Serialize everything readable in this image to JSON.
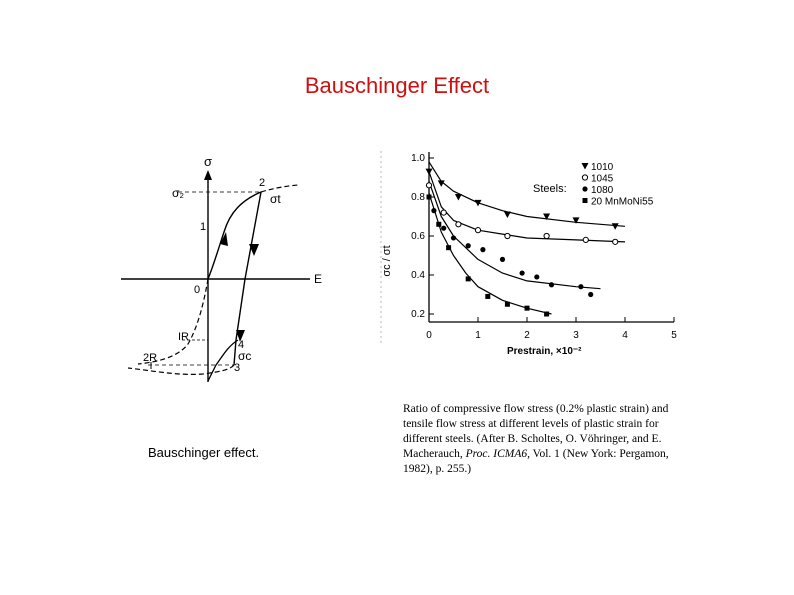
{
  "slide": {
    "title": "Bauschinger Effect",
    "caption_left": "Bauschinger effect.",
    "caption_right": {
      "part1": "Ratio of compressive flow stress (0.2% plastic strain) and tensile flow stress at different levels of plastic strain for different steels. (After B. Scholtes, O. Vöhringer, and E. Macherauch, ",
      "italic": "Proc. ICMA6,",
      "part2": " Vol. 1 (New York: Pergamon, 1982), p. 255.)"
    }
  },
  "hysteresis": {
    "y_label": "σ",
    "x_label": "E",
    "origin_label": "0",
    "labels": {
      "sigma2": "σ₂",
      "pt1": "1",
      "pt2": "2",
      "sigma_t": "σt",
      "ir": "IR",
      "pt2r": "2R",
      "pt3": "3",
      "pt4": "4",
      "sigma_c": "σc"
    }
  },
  "chart_data": {
    "type": "scatter",
    "title": "",
    "xlabel": "Prestrain, ×10⁻²",
    "ylabel": "σc / σt",
    "xlim": [
      0,
      5
    ],
    "ylim": [
      0.2,
      1.0
    ],
    "x_ticks": [
      "0",
      "1",
      "2",
      "3",
      "4",
      "5"
    ],
    "y_ticks": [
      "0.2",
      "0.4",
      "0.6",
      "0.8",
      "1.0"
    ],
    "legend_title": "Steels:",
    "legend_position": "top-right",
    "series": [
      {
        "name": "1010",
        "marker": "triangle-down",
        "points": [
          [
            0,
            0.93
          ],
          [
            0.25,
            0.87
          ],
          [
            0.6,
            0.8
          ],
          [
            1.0,
            0.77
          ],
          [
            1.6,
            0.71
          ],
          [
            2.4,
            0.7
          ],
          [
            3.0,
            0.68
          ],
          [
            3.8,
            0.65
          ]
        ],
        "curve": [
          [
            0,
            0.98
          ],
          [
            0.25,
            0.88
          ],
          [
            0.5,
            0.83
          ],
          [
            1.0,
            0.77
          ],
          [
            1.5,
            0.73
          ],
          [
            2.0,
            0.7
          ],
          [
            3.0,
            0.67
          ],
          [
            4.0,
            0.65
          ]
        ]
      },
      {
        "name": "1045",
        "marker": "circle-open",
        "points": [
          [
            0,
            0.86
          ],
          [
            0.3,
            0.72
          ],
          [
            0.6,
            0.66
          ],
          [
            1.0,
            0.63
          ],
          [
            1.6,
            0.6
          ],
          [
            2.4,
            0.6
          ],
          [
            3.2,
            0.58
          ],
          [
            3.8,
            0.57
          ]
        ],
        "curve": [
          [
            0,
            0.93
          ],
          [
            0.25,
            0.75
          ],
          [
            0.5,
            0.68
          ],
          [
            1.0,
            0.63
          ],
          [
            1.5,
            0.61
          ],
          [
            2.0,
            0.59
          ],
          [
            3.0,
            0.58
          ],
          [
            4.0,
            0.57
          ]
        ]
      },
      {
        "name": "1080",
        "marker": "circle-filled",
        "points": [
          [
            0,
            0.8
          ],
          [
            0.1,
            0.73
          ],
          [
            0.3,
            0.64
          ],
          [
            0.5,
            0.59
          ],
          [
            0.8,
            0.55
          ],
          [
            1.1,
            0.53
          ],
          [
            1.5,
            0.48
          ],
          [
            1.9,
            0.41
          ],
          [
            2.2,
            0.39
          ],
          [
            2.5,
            0.35
          ],
          [
            3.1,
            0.34
          ],
          [
            3.3,
            0.3
          ]
        ],
        "curve": [
          [
            0,
            0.88
          ],
          [
            0.25,
            0.7
          ],
          [
            0.5,
            0.6
          ],
          [
            1.0,
            0.48
          ],
          [
            1.5,
            0.41
          ],
          [
            2.0,
            0.37
          ],
          [
            3.0,
            0.34
          ],
          [
            3.5,
            0.33
          ]
        ]
      },
      {
        "name": "20 MnMoNi55",
        "marker": "square-filled",
        "points": [
          [
            0,
            0.8
          ],
          [
            0.2,
            0.66
          ],
          [
            0.4,
            0.54
          ],
          [
            0.8,
            0.38
          ],
          [
            1.2,
            0.29
          ],
          [
            1.6,
            0.25
          ],
          [
            2.0,
            0.23
          ],
          [
            2.4,
            0.2
          ]
        ],
        "curve": [
          [
            0,
            0.82
          ],
          [
            0.25,
            0.62
          ],
          [
            0.5,
            0.5
          ],
          [
            0.75,
            0.41
          ],
          [
            1.0,
            0.34
          ],
          [
            1.5,
            0.27
          ],
          [
            2.0,
            0.23
          ],
          [
            2.5,
            0.2
          ]
        ]
      }
    ]
  }
}
